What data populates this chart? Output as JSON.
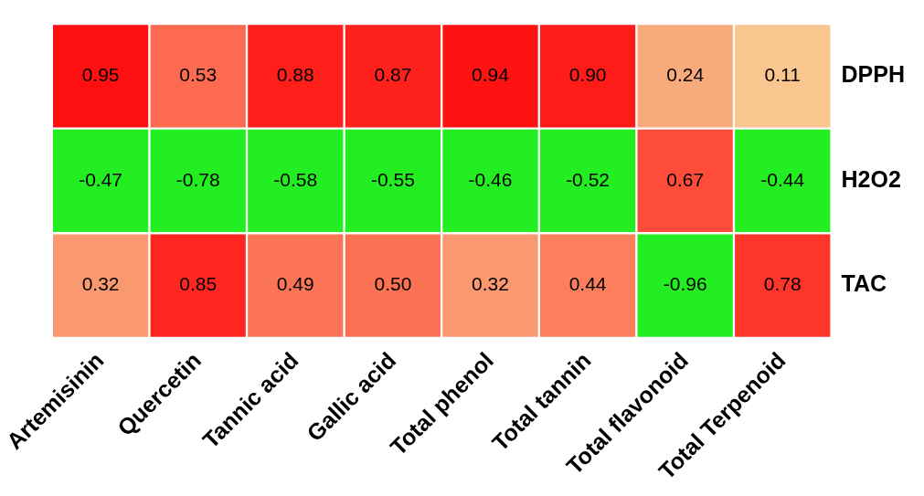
{
  "chart_data": {
    "type": "heatmap",
    "categories": [
      "Artemisinin",
      "Quercetin",
      "Tannic acid",
      "Gallic acid",
      "Total phenol",
      "Total tannin",
      "Total flavonoid",
      "Total Terpenoid"
    ],
    "y_categories": [
      "DPPH",
      "H2O2",
      "TAC"
    ],
    "cells": [
      [
        0.95,
        0.53,
        0.88,
        0.87,
        0.94,
        0.9,
        0.24,
        0.11
      ],
      [
        -0.47,
        -0.78,
        -0.58,
        -0.55,
        -0.46,
        -0.52,
        0.67,
        -0.44
      ],
      [
        0.32,
        0.85,
        0.49,
        0.5,
        0.32,
        0.44,
        -0.96,
        0.78
      ]
    ],
    "cell_labels": [
      [
        "0.95",
        "0.53",
        "0.88",
        "0.87",
        "0.94",
        "0.90",
        "0.24",
        "0.11"
      ],
      [
        "-0.47",
        "-0.78",
        "-0.58",
        "-0.55",
        "-0.46",
        "-0.52",
        "0.67",
        "-0.44"
      ],
      [
        "0.32",
        "0.85",
        "0.49",
        "0.50",
        "0.32",
        "0.44",
        "-0.96",
        "0.78"
      ]
    ]
  }
}
